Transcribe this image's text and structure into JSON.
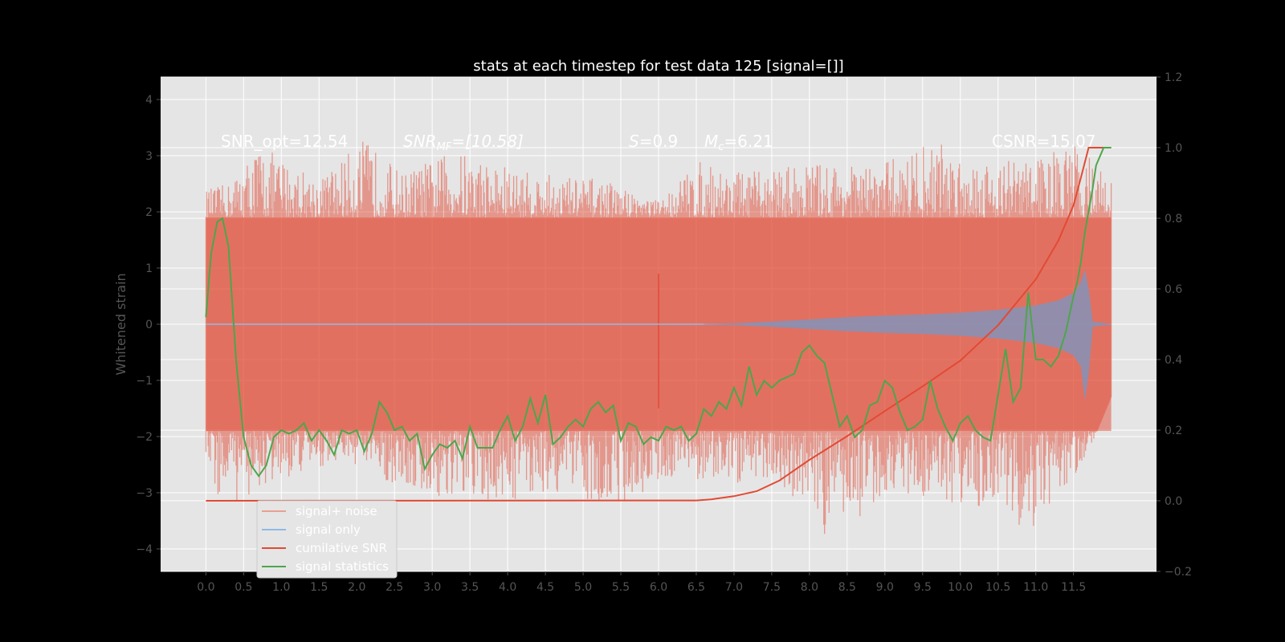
{
  "chart_data": {
    "type": "line",
    "title": "stats at each timestep for test data 125 [signal=[]]",
    "ylabel_left": "Whitened strain",
    "ylim_left": [
      -4.4,
      4.4
    ],
    "ylim_right": [
      -0.2,
      1.2
    ],
    "xlim": [
      -0.6,
      12.6
    ],
    "x_ticks": [
      "0.0",
      "0.5",
      "1.0",
      "1.5",
      "2.0",
      "2.5",
      "3.0",
      "3.5",
      "4.0",
      "4.5",
      "5.0",
      "5.5",
      "6.0",
      "6.5",
      "7.0",
      "7.5",
      "8.0",
      "8.5",
      "9.0",
      "9.5",
      "10.0",
      "10.5",
      "11.0",
      "11.5"
    ],
    "y_ticks_left": [
      "4",
      "3",
      "2",
      "1",
      "0",
      "−1",
      "−2",
      "−3",
      "−4"
    ],
    "y_ticks_right": [
      "1.2",
      "1.0",
      "0.8",
      "0.6",
      "0.4",
      "0.2",
      "0.0",
      "−0.2"
    ],
    "grid": true,
    "legend_position": "lower-left",
    "annotations": {
      "snr_opt": "SNR_opt=12.54",
      "snr_mf": "SNR",
      "snr_mf_sub": "MF",
      "snr_mf_val": "=[10.58]",
      "s_label": "S",
      "s_val": "=0.9",
      "mc_label": "M",
      "mc_sub": "c",
      "mc_val": "=6.21",
      "csnr": "CSNR=15.07"
    },
    "series": [
      {
        "name": "signal+ noise",
        "axis": "left",
        "color": "#E24A33",
        "envelope": {
          "upper": [
            [
              0.0,
              2.4
            ],
            [
              0.3,
              2.5
            ],
            [
              0.7,
              3.2
            ],
            [
              1.5,
              2.6
            ],
            [
              2.1,
              3.3
            ],
            [
              2.6,
              2.7
            ],
            [
              3.3,
              3.1
            ],
            [
              4.3,
              2.7
            ],
            [
              5.2,
              2.6
            ],
            [
              6.0,
              2.2
            ],
            [
              6.5,
              2.9
            ],
            [
              7.2,
              2.7
            ],
            [
              8.0,
              2.9
            ],
            [
              8.8,
              2.8
            ],
            [
              9.7,
              3.3
            ],
            [
              10.3,
              2.9
            ],
            [
              11.0,
              3.0
            ],
            [
              11.6,
              3.2
            ],
            [
              12.0,
              2.6
            ]
          ],
          "lower": [
            [
              0.0,
              -2.4
            ],
            [
              0.2,
              -3.3
            ],
            [
              1.0,
              -2.8
            ],
            [
              1.8,
              -2.4
            ],
            [
              2.5,
              -2.9
            ],
            [
              3.5,
              -3.3
            ],
            [
              4.5,
              -3.0
            ],
            [
              5.5,
              -3.2
            ],
            [
              6.2,
              -2.7
            ],
            [
              7.0,
              -2.9
            ],
            [
              7.5,
              -2.7
            ],
            [
              8.3,
              -3.9
            ],
            [
              9.0,
              -3.0
            ],
            [
              10.0,
              -3.2
            ],
            [
              10.6,
              -3.3
            ],
            [
              10.9,
              -3.8
            ],
            [
              11.6,
              -2.6
            ],
            [
              12.0,
              -1.3
            ]
          ]
        },
        "core_band": [
          -1.9,
          1.9
        ]
      },
      {
        "name": "signal only",
        "axis": "left",
        "color": "#8EBAE5",
        "envelope": {
          "t": [
            6.6,
            7.0,
            7.5,
            8.0,
            8.5,
            9.0,
            9.5,
            10.0,
            10.5,
            11.0,
            11.3,
            11.5,
            11.6,
            11.65,
            11.7,
            11.75,
            12.0
          ],
          "amp": [
            0.0,
            0.01,
            0.04,
            0.08,
            0.12,
            0.15,
            0.17,
            0.2,
            0.25,
            0.33,
            0.42,
            0.55,
            0.75,
            0.95,
            0.6,
            0.04,
            0.0
          ]
        }
      },
      {
        "name": "cumilative SNR",
        "axis": "right",
        "color": "#E24A33",
        "x": [
          0.0,
          6.5,
          6.7,
          7.0,
          7.3,
          7.6,
          8.0,
          8.5,
          9.0,
          9.5,
          10.0,
          10.5,
          11.0,
          11.3,
          11.5,
          11.6,
          11.7,
          12.0
        ],
        "y": [
          0.0,
          0.001,
          0.004,
          0.013,
          0.027,
          0.057,
          0.116,
          0.183,
          0.254,
          0.324,
          0.397,
          0.497,
          0.627,
          0.737,
          0.837,
          0.917,
          1.0,
          1.0
        ]
      },
      {
        "name": "signal statistics",
        "axis": "right",
        "color": "#4CA64C",
        "x": [
          0.0,
          0.07,
          0.15,
          0.22,
          0.3,
          0.4,
          0.5,
          0.6,
          0.7,
          0.8,
          0.9,
          1.0,
          1.1,
          1.2,
          1.3,
          1.4,
          1.5,
          1.6,
          1.7,
          1.8,
          1.9,
          2.0,
          2.1,
          2.2,
          2.3,
          2.4,
          2.5,
          2.6,
          2.7,
          2.8,
          2.9,
          3.0,
          3.1,
          3.2,
          3.3,
          3.4,
          3.5,
          3.6,
          3.7,
          3.8,
          3.9,
          4.0,
          4.1,
          4.2,
          4.3,
          4.4,
          4.5,
          4.6,
          4.7,
          4.8,
          4.9,
          5.0,
          5.1,
          5.2,
          5.3,
          5.4,
          5.5,
          5.6,
          5.7,
          5.8,
          5.9,
          6.0,
          6.1,
          6.2,
          6.3,
          6.4,
          6.5,
          6.6,
          6.7,
          6.8,
          6.9,
          7.0,
          7.1,
          7.2,
          7.3,
          7.4,
          7.5,
          7.6,
          7.7,
          7.8,
          7.9,
          8.0,
          8.1,
          8.2,
          8.3,
          8.4,
          8.5,
          8.6,
          8.7,
          8.8,
          8.9,
          9.0,
          9.1,
          9.2,
          9.3,
          9.4,
          9.5,
          9.6,
          9.7,
          9.8,
          9.9,
          10.0,
          10.1,
          10.2,
          10.3,
          10.4,
          10.5,
          10.6,
          10.7,
          10.8,
          10.9,
          11.0,
          11.1,
          11.2,
          11.3,
          11.4,
          11.5,
          11.55,
          11.6,
          11.65,
          11.7,
          11.75,
          11.8,
          11.9,
          12.0
        ],
        "y": [
          0.52,
          0.7,
          0.79,
          0.8,
          0.72,
          0.4,
          0.18,
          0.1,
          0.07,
          0.1,
          0.18,
          0.2,
          0.19,
          0.2,
          0.22,
          0.17,
          0.2,
          0.17,
          0.13,
          0.2,
          0.19,
          0.2,
          0.14,
          0.19,
          0.28,
          0.25,
          0.2,
          0.21,
          0.17,
          0.19,
          0.09,
          0.13,
          0.16,
          0.15,
          0.17,
          0.12,
          0.21,
          0.15,
          0.15,
          0.15,
          0.2,
          0.24,
          0.17,
          0.21,
          0.29,
          0.22,
          0.3,
          0.16,
          0.18,
          0.21,
          0.23,
          0.21,
          0.26,
          0.28,
          0.25,
          0.27,
          0.17,
          0.22,
          0.21,
          0.16,
          0.18,
          0.17,
          0.21,
          0.2,
          0.21,
          0.17,
          0.19,
          0.26,
          0.24,
          0.28,
          0.26,
          0.32,
          0.27,
          0.38,
          0.3,
          0.34,
          0.32,
          0.34,
          0.35,
          0.36,
          0.42,
          0.44,
          0.41,
          0.39,
          0.3,
          0.21,
          0.24,
          0.18,
          0.2,
          0.27,
          0.28,
          0.34,
          0.32,
          0.25,
          0.2,
          0.21,
          0.23,
          0.34,
          0.26,
          0.21,
          0.17,
          0.22,
          0.24,
          0.2,
          0.18,
          0.17,
          0.3,
          0.43,
          0.28,
          0.32,
          0.59,
          0.4,
          0.4,
          0.38,
          0.41,
          0.48,
          0.58,
          0.62,
          0.68,
          0.76,
          0.82,
          0.88,
          0.95,
          1.0,
          1.0
        ]
      }
    ]
  }
}
